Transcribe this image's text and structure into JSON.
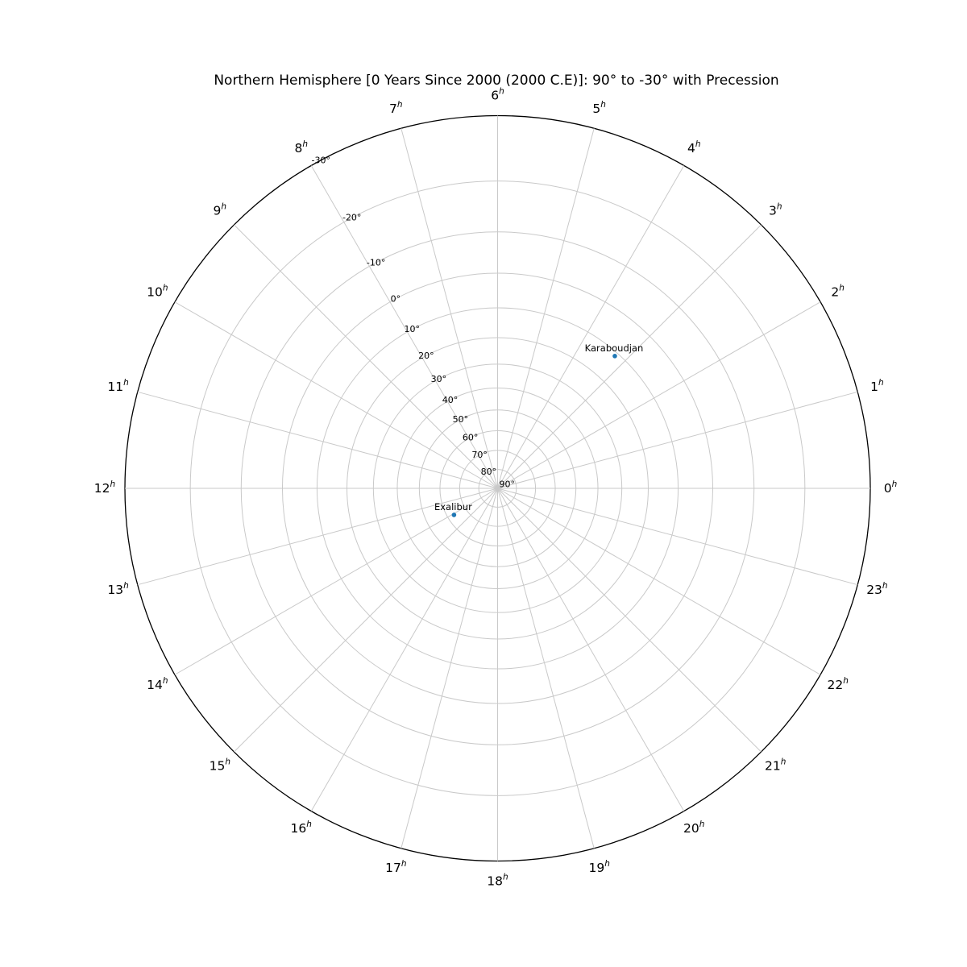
{
  "title": "Northern Hemisphere [0 Years Since 2000 (2000 C.E)]: 90° to -30° with Precession",
  "chart_data": {
    "type": "scatter",
    "subtype": "polar-star-chart",
    "projection": "stereographic: r proportional to tan((90°-dec)/2), dec 90° at center, dec -30° at outer rim",
    "grid": true,
    "theta_axis": {
      "unit": "right ascension hours",
      "direction": "counterclockwise",
      "zero_position": "right",
      "degrees_per_hour": 15,
      "tick_hours": [
        0,
        1,
        2,
        3,
        4,
        5,
        6,
        7,
        8,
        9,
        10,
        11,
        12,
        13,
        14,
        15,
        16,
        17,
        18,
        19,
        20,
        21,
        22,
        23
      ],
      "tick_labels": [
        "0h",
        "1h",
        "2h",
        "3h",
        "4h",
        "5h",
        "6h",
        "7h",
        "8h",
        "9h",
        "10h",
        "11h",
        "12h",
        "13h",
        "14h",
        "15h",
        "16h",
        "17h",
        "18h",
        "19h",
        "20h",
        "21h",
        "22h",
        "23h"
      ],
      "superscript_suffix": "h"
    },
    "r_axis": {
      "unit": "declination degrees",
      "max_dec_center": 90,
      "min_dec_rim": -30,
      "tick_degrees": [
        -30,
        -20,
        -10,
        0,
        10,
        20,
        30,
        40,
        50,
        60,
        70,
        80,
        90
      ],
      "tick_labels": [
        "-30°",
        "-20°",
        "-10°",
        "0°",
        "10°",
        "20°",
        "30°",
        "40°",
        "50°",
        "60°",
        "70°",
        "80°",
        "90°"
      ],
      "label_suffix": "°",
      "label_angle_deg": 118.3
    },
    "points": [
      {
        "label": "Karaboudjan",
        "ra_hours": 3.23,
        "dec_deg": 11.2
      },
      {
        "label": "Exalibur",
        "ra_hours": 14.09,
        "dec_deg": 63.3
      }
    ]
  },
  "colors": {
    "background": "#ffffff",
    "grid": "#c9c9c9",
    "outline": "#000000",
    "text": "#000000",
    "point": "#1f77b4"
  }
}
